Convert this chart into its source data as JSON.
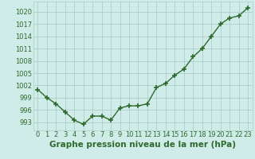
{
  "x": [
    0,
    1,
    2,
    3,
    4,
    5,
    6,
    7,
    8,
    9,
    10,
    11,
    12,
    13,
    14,
    15,
    16,
    17,
    18,
    19,
    20,
    21,
    22,
    23
  ],
  "y": [
    1001.0,
    999.0,
    997.5,
    995.5,
    993.5,
    992.5,
    994.5,
    994.5,
    993.5,
    996.5,
    997.0,
    997.0,
    997.5,
    1001.5,
    1002.5,
    1004.5,
    1006.0,
    1009.0,
    1011.0,
    1014.0,
    1017.0,
    1018.5,
    1019.0,
    1021.0
  ],
  "line_color": "#2d6a2d",
  "marker": "+",
  "marker_color": "#2d6a2d",
  "bg_color": "#d0ece8",
  "grid_color": "#aecfcb",
  "xlabel": "Graphe pression niveau de la mer (hPa)",
  "xlabel_fontsize": 7.5,
  "yticks": [
    993,
    996,
    999,
    1002,
    1005,
    1008,
    1011,
    1014,
    1017,
    1020
  ],
  "ylim": [
    991.0,
    1022.5
  ],
  "xlim": [
    -0.5,
    23.5
  ],
  "xticks": [
    0,
    1,
    2,
    3,
    4,
    5,
    6,
    7,
    8,
    9,
    10,
    11,
    12,
    13,
    14,
    15,
    16,
    17,
    18,
    19,
    20,
    21,
    22,
    23
  ],
  "tick_fontsize": 6.0,
  "linewidth": 1.0,
  "markersize": 4.5,
  "marker_linewidth": 1.2
}
